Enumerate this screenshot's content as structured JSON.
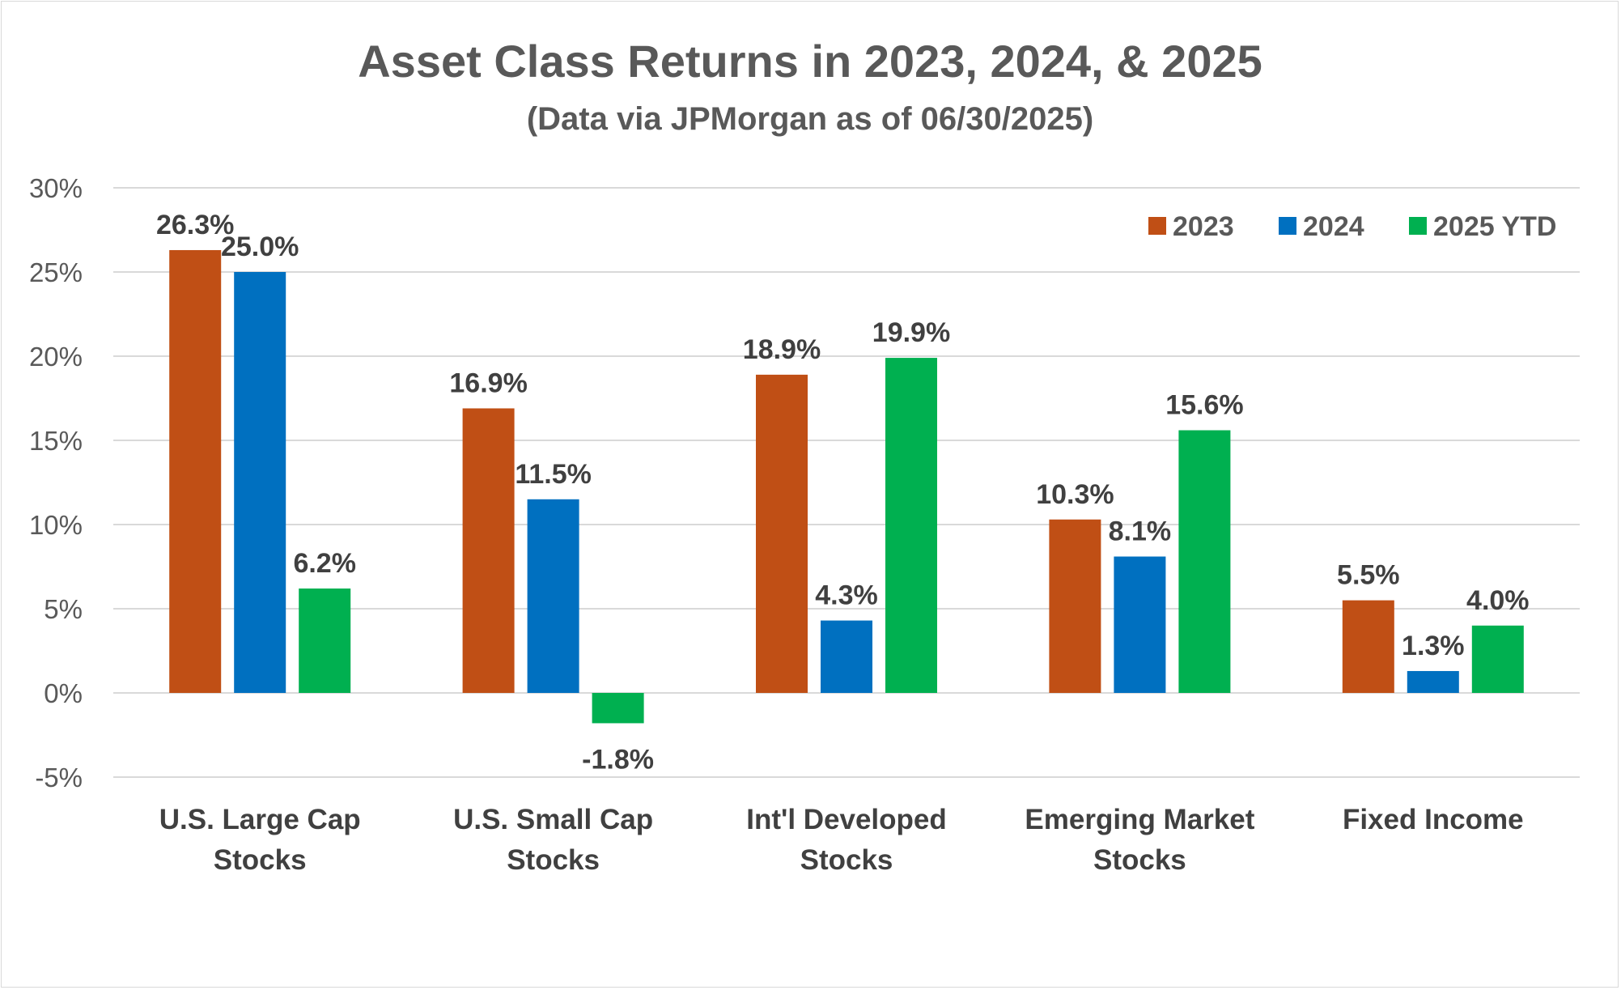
{
  "chart_data": {
    "type": "bar",
    "title": "Asset Class Returns in 2023, 2024, & 2025",
    "subtitle": "(Data via JPMorgan as of 06/30/2025)",
    "categories": [
      [
        "U.S. Large Cap",
        "Stocks"
      ],
      [
        "U.S. Small Cap",
        "Stocks"
      ],
      [
        "Int'l Developed",
        "Stocks"
      ],
      [
        "Emerging Market",
        "Stocks"
      ],
      [
        "Fixed Income"
      ]
    ],
    "series": [
      {
        "name": "2023",
        "color": "#c04f15",
        "values": [
          26.3,
          16.9,
          18.9,
          10.3,
          5.5
        ],
        "labels": [
          "26.3%",
          "16.9%",
          "18.9%",
          "10.3%",
          "5.5%"
        ]
      },
      {
        "name": "2024",
        "color": "#0070c0",
        "values": [
          25.0,
          11.5,
          4.3,
          8.1,
          1.3
        ],
        "labels": [
          "25.0%",
          "11.5%",
          "4.3%",
          "8.1%",
          "1.3%"
        ]
      },
      {
        "name": "2025 YTD",
        "color": "#00b050",
        "values": [
          6.2,
          -1.8,
          19.9,
          15.6,
          4.0
        ],
        "labels": [
          "6.2%",
          "-1.8%",
          "19.9%",
          "15.6%",
          "4.0%"
        ]
      }
    ],
    "yticks": [
      30,
      25,
      20,
      15,
      10,
      5,
      0,
      -5
    ],
    "ytick_labels": [
      "30%",
      "25%",
      "20%",
      "15%",
      "10%",
      "5%",
      "0%",
      "-5%"
    ],
    "ylim": [
      -5,
      30
    ],
    "grid": true,
    "legend_position": "top-right"
  }
}
